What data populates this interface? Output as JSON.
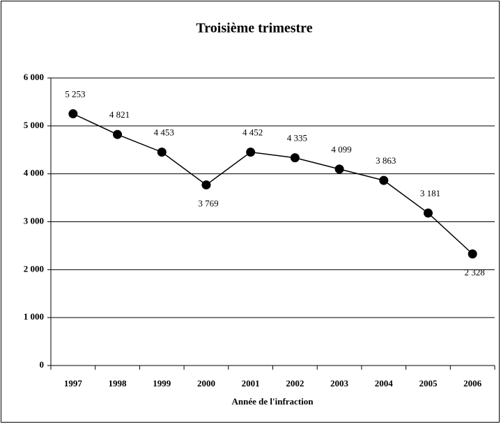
{
  "chart_data": {
    "type": "line",
    "title": "Troisième trimestre",
    "x_label": "Année de l'infraction",
    "categories": [
      "1997",
      "1998",
      "1999",
      "2000",
      "2001",
      "2002",
      "2003",
      "2004",
      "2005",
      "2006"
    ],
    "series": [
      {
        "name": "Troisième trimestre",
        "color": "#000000",
        "values": [
          5253,
          4821,
          4453,
          3769,
          4452,
          4335,
          4099,
          3863,
          3181,
          2328
        ],
        "value_labels": [
          "5 253",
          "4 821",
          "4 453",
          "3 769",
          "4 452",
          "4 335",
          "4 099",
          "3 863",
          "3 181",
          "2 328"
        ]
      }
    ],
    "ylim": [
      0,
      6000
    ],
    "yticks": [
      {
        "value": 0,
        "label": "0"
      },
      {
        "value": 1000,
        "label": "1 000"
      },
      {
        "value": 2000,
        "label": "2 000"
      },
      {
        "value": 3000,
        "label": "3 000"
      },
      {
        "value": 4000,
        "label": "4 000"
      },
      {
        "value": 5000,
        "label": "5 000"
      },
      {
        "value": 6000,
        "label": "6 000"
      }
    ],
    "grid": true
  }
}
